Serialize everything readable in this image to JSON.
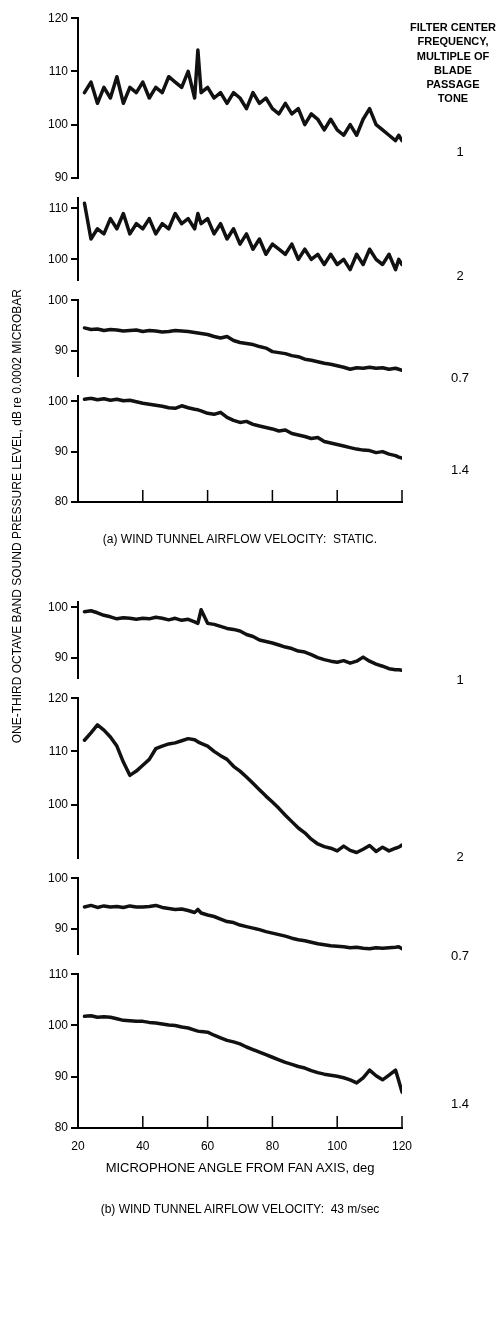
{
  "chart_data": [
    {
      "type": "line",
      "legend_title": "FILTER CENTER FREQUENCY, MULTIPLE OF BLADE PASSAGE TONE",
      "x": [
        22,
        24,
        26,
        28,
        30,
        32,
        34,
        36,
        38,
        40,
        42,
        44,
        46,
        48,
        50,
        52,
        54,
        56,
        57,
        58,
        60,
        62,
        64,
        66,
        68,
        70,
        72,
        74,
        76,
        78,
        80,
        82,
        84,
        86,
        88,
        90,
        92,
        94,
        96,
        98,
        100,
        102,
        104,
        106,
        108,
        110,
        112,
        114,
        116,
        118,
        119,
        120
      ],
      "xlim": [
        20,
        120
      ],
      "ylim": [
        90,
        120
      ],
      "yticks": [
        90,
        100,
        110,
        120
      ],
      "tick_labels": "y",
      "series": [
        {
          "name": "1",
          "color": "#111111",
          "values": [
            106,
            108,
            104,
            107,
            105,
            109,
            104,
            107,
            106,
            108,
            105,
            107,
            106,
            109,
            108,
            107,
            110,
            105,
            114,
            106,
            107,
            105,
            106,
            104,
            106,
            105,
            103,
            106,
            104,
            105,
            103,
            102,
            104,
            102,
            103,
            100,
            102,
            101,
            99,
            101,
            99,
            98,
            100,
            98,
            101,
            103,
            100,
            99,
            98,
            97,
            98,
            97
          ]
        }
      ]
    },
    {
      "type": "line",
      "x": [
        22,
        24,
        26,
        28,
        30,
        32,
        34,
        36,
        38,
        40,
        42,
        44,
        46,
        48,
        50,
        52,
        54,
        56,
        57,
        58,
        60,
        62,
        64,
        66,
        68,
        70,
        72,
        74,
        76,
        78,
        80,
        82,
        84,
        86,
        88,
        90,
        92,
        94,
        96,
        98,
        100,
        102,
        104,
        106,
        108,
        110,
        112,
        114,
        116,
        118,
        119,
        120
      ],
      "xlim": [
        20,
        120
      ],
      "ylim": [
        96,
        112
      ],
      "yticks": [
        100,
        110
      ],
      "tick_labels": "y",
      "series": [
        {
          "name": "2",
          "color": "#111111",
          "values": [
            111,
            104,
            106,
            105,
            108,
            106,
            109,
            105,
            107,
            106,
            108,
            105,
            107,
            106,
            109,
            107,
            108,
            106,
            109,
            107,
            108,
            105,
            107,
            104,
            106,
            103,
            105,
            102,
            104,
            101,
            103,
            102,
            101,
            103,
            100,
            102,
            100,
            101,
            99,
            101,
            99,
            100,
            98,
            101,
            99,
            102,
            100,
            99,
            101,
            98,
            100,
            99
          ]
        }
      ]
    },
    {
      "type": "line",
      "x": [
        22,
        24,
        26,
        28,
        30,
        32,
        34,
        36,
        38,
        40,
        42,
        44,
        46,
        48,
        50,
        52,
        54,
        56,
        57,
        58,
        60,
        62,
        64,
        66,
        68,
        70,
        72,
        74,
        76,
        78,
        80,
        82,
        84,
        86,
        88,
        90,
        92,
        94,
        96,
        98,
        100,
        102,
        104,
        106,
        108,
        110,
        112,
        114,
        116,
        118,
        119,
        120
      ],
      "xlim": [
        20,
        120
      ],
      "ylim": [
        85,
        100
      ],
      "yticks": [
        90,
        100
      ],
      "tick_labels": "y",
      "series": [
        {
          "name": "0.7",
          "color": "#111111",
          "values": [
            94.5,
            94.2,
            94.3,
            94,
            94.2,
            94.1,
            93.9,
            94,
            94.1,
            93.8,
            94,
            93.9,
            93.7,
            93.8,
            94,
            93.9,
            93.8,
            93.6,
            93.5,
            93.4,
            93.2,
            92.8,
            92.5,
            92.8,
            92,
            91.6,
            91.4,
            91.2,
            90.8,
            90.5,
            89.8,
            89.6,
            89.4,
            89,
            88.8,
            88.3,
            88.1,
            87.8,
            87.5,
            87.3,
            87,
            86.7,
            86.3,
            86.6,
            86.5,
            86.7,
            86.5,
            86.6,
            86.3,
            86.5,
            86.3,
            86.1
          ]
        }
      ]
    },
    {
      "type": "line",
      "ylabel": "ONE-THIRD OCTAVE BAND SOUND PRESSURE LEVEL, dB re 0.0002 MICROBAR",
      "x": [
        22,
        24,
        26,
        28,
        30,
        32,
        34,
        36,
        38,
        40,
        42,
        44,
        46,
        48,
        50,
        52,
        54,
        56,
        57,
        58,
        60,
        62,
        64,
        66,
        68,
        70,
        72,
        74,
        76,
        78,
        80,
        82,
        84,
        86,
        88,
        90,
        92,
        94,
        96,
        98,
        100,
        102,
        104,
        106,
        108,
        110,
        112,
        114,
        116,
        118,
        119,
        120
      ],
      "xlim": [
        20,
        120
      ],
      "ylim": [
        80,
        101
      ],
      "yticks": [
        80,
        90,
        100
      ],
      "xticks": [
        {
          "value": 40,
          "label": null
        },
        {
          "value": 60,
          "label": null
        },
        {
          "value": 80,
          "label": null
        },
        {
          "value": 100,
          "label": null
        },
        {
          "value": 120,
          "label": null
        }
      ],
      "tick_labels": "y",
      "annotations": [
        "(a) WIND TUNNEL AIRFLOW VELOCITY:  STATIC."
      ],
      "series": [
        {
          "name": "1.4",
          "color": "#111111",
          "values": [
            100.4,
            100.6,
            100.3,
            100.5,
            100.2,
            100.4,
            100.1,
            100.2,
            99.9,
            99.6,
            99.4,
            99.2,
            99,
            98.7,
            98.6,
            99.1,
            98.7,
            98.4,
            98.3,
            98.1,
            97.6,
            97.4,
            97.8,
            96.8,
            96.2,
            95.8,
            96,
            95.4,
            95.1,
            94.8,
            94.5,
            94.1,
            94.3,
            93.6,
            93.3,
            93,
            92.6,
            92.8,
            92,
            91.7,
            91.4,
            91.1,
            90.8,
            90.5,
            90.3,
            90.2,
            89.8,
            90,
            89.5,
            89.2,
            88.9,
            88.7
          ]
        }
      ]
    },
    {
      "type": "line",
      "x": [
        22,
        24,
        26,
        28,
        30,
        32,
        34,
        36,
        38,
        40,
        42,
        44,
        46,
        48,
        50,
        52,
        54,
        56,
        57,
        58,
        60,
        62,
        64,
        66,
        68,
        70,
        72,
        74,
        76,
        78,
        80,
        82,
        84,
        86,
        88,
        90,
        92,
        94,
        96,
        98,
        100,
        102,
        104,
        106,
        108,
        110,
        112,
        114,
        116,
        118,
        119,
        120
      ],
      "xlim": [
        20,
        120
      ],
      "ylim": [
        86,
        101
      ],
      "yticks": [
        90,
        100
      ],
      "tick_labels": "y",
      "series": [
        {
          "name": "1",
          "color": "#111111",
          "values": [
            99.1,
            99.3,
            98.9,
            98.4,
            98.1,
            97.7,
            97.9,
            97.8,
            97.6,
            97.8,
            97.7,
            98,
            97.8,
            97.5,
            97.8,
            97.4,
            97.6,
            97.1,
            96.8,
            99.5,
            96.8,
            96.6,
            96.2,
            95.8,
            95.6,
            95.3,
            94.6,
            94.2,
            93.5,
            93.2,
            92.9,
            92.5,
            92.1,
            91.8,
            91.3,
            91.1,
            90.6,
            90,
            89.6,
            89.3,
            89.1,
            89.4,
            88.9,
            89.3,
            90.1,
            89.3,
            88.7,
            88.3,
            87.8,
            87.6,
            87.6,
            87.5
          ]
        }
      ]
    },
    {
      "type": "line",
      "x": [
        22,
        24,
        26,
        28,
        30,
        32,
        34,
        36,
        38,
        40,
        42,
        44,
        46,
        48,
        50,
        52,
        54,
        56,
        57,
        58,
        60,
        62,
        64,
        66,
        68,
        70,
        72,
        74,
        76,
        78,
        80,
        82,
        84,
        86,
        88,
        90,
        92,
        94,
        96,
        98,
        100,
        102,
        104,
        106,
        108,
        110,
        112,
        114,
        116,
        118,
        119,
        120
      ],
      "xlim": [
        20,
        120
      ],
      "ylim": [
        90,
        120
      ],
      "yticks": [
        100,
        110,
        120
      ],
      "tick_labels": "y",
      "series": [
        {
          "name": "2",
          "color": "#111111",
          "values": [
            112.1,
            113.5,
            115,
            114,
            112.7,
            111,
            108,
            105.5,
            106.3,
            107.4,
            108.5,
            110.5,
            111,
            111.4,
            111.6,
            112,
            112.4,
            112.2,
            111.8,
            111.5,
            111,
            110,
            109.2,
            108.5,
            107.2,
            106.3,
            105.2,
            104,
            102.8,
            101.6,
            100.5,
            99.3,
            98,
            96.8,
            95.6,
            94.7,
            93.5,
            92.6,
            92.1,
            91.8,
            91.3,
            92.2,
            91.4,
            91,
            91.6,
            92.3,
            91.2,
            92,
            91.3,
            91.8,
            92,
            92.4
          ]
        }
      ]
    },
    {
      "type": "line",
      "x": [
        22,
        24,
        26,
        28,
        30,
        32,
        34,
        36,
        38,
        40,
        42,
        44,
        46,
        48,
        50,
        52,
        54,
        56,
        57,
        58,
        60,
        62,
        64,
        66,
        68,
        70,
        72,
        74,
        76,
        78,
        80,
        82,
        84,
        86,
        88,
        90,
        92,
        94,
        96,
        98,
        100,
        102,
        104,
        106,
        108,
        110,
        112,
        114,
        116,
        118,
        119,
        120
      ],
      "xlim": [
        20,
        120
      ],
      "ylim": [
        85,
        100
      ],
      "yticks": [
        90,
        100
      ],
      "tick_labels": "y",
      "series": [
        {
          "name": "0.7",
          "color": "#111111",
          "values": [
            94.3,
            94.6,
            94.2,
            94.5,
            94.3,
            94.4,
            94.2,
            94.5,
            94.3,
            94.3,
            94.4,
            94.6,
            94.2,
            94,
            93.8,
            93.9,
            93.6,
            93.2,
            93.8,
            93.1,
            92.7,
            92.4,
            91.9,
            91.4,
            91.2,
            90.7,
            90.4,
            90.1,
            89.8,
            89.4,
            89.1,
            88.8,
            88.5,
            88.1,
            87.8,
            87.6,
            87.3,
            87,
            86.8,
            86.6,
            86.5,
            86.4,
            86.2,
            86.3,
            86.1,
            86,
            86.2,
            86.1,
            86.2,
            86.3,
            86.4,
            86
          ]
        }
      ]
    },
    {
      "type": "line",
      "x": [
        22,
        24,
        26,
        28,
        30,
        32,
        34,
        36,
        38,
        40,
        42,
        44,
        46,
        48,
        50,
        52,
        54,
        56,
        57,
        58,
        60,
        62,
        64,
        66,
        68,
        70,
        72,
        74,
        76,
        78,
        80,
        82,
        84,
        86,
        88,
        90,
        92,
        94,
        96,
        98,
        100,
        102,
        104,
        106,
        108,
        110,
        112,
        114,
        116,
        118,
        119,
        120
      ],
      "xlim": [
        20,
        120
      ],
      "ylim": [
        80,
        110
      ],
      "yticks": [
        80,
        90,
        100,
        110
      ],
      "xticks": [
        20,
        40,
        60,
        80,
        100,
        120
      ],
      "xlabel": "MICROPHONE ANGLE FROM FAN AXIS, deg",
      "annotations": [
        "(b) WIND TUNNEL AIRFLOW VELOCITY:  43 m/sec"
      ],
      "series": [
        {
          "name": "1.4",
          "color": "#111111",
          "values": [
            101.8,
            101.9,
            101.6,
            101.7,
            101.6,
            101.3,
            101,
            100.9,
            100.8,
            100.8,
            100.6,
            100.5,
            100.3,
            100.1,
            100,
            99.7,
            99.5,
            99.1,
            98.9,
            98.8,
            98.7,
            98.1,
            97.6,
            97.1,
            96.8,
            96.4,
            95.8,
            95.3,
            94.8,
            94.3,
            93.8,
            93.3,
            92.8,
            92.4,
            92,
            91.7,
            91.2,
            90.8,
            90.5,
            90.3,
            90.1,
            89.8,
            89.4,
            88.8,
            89.8,
            91.3,
            90.2,
            89.4,
            90.3,
            91.3,
            89.2,
            87
          ]
        }
      ]
    }
  ]
}
